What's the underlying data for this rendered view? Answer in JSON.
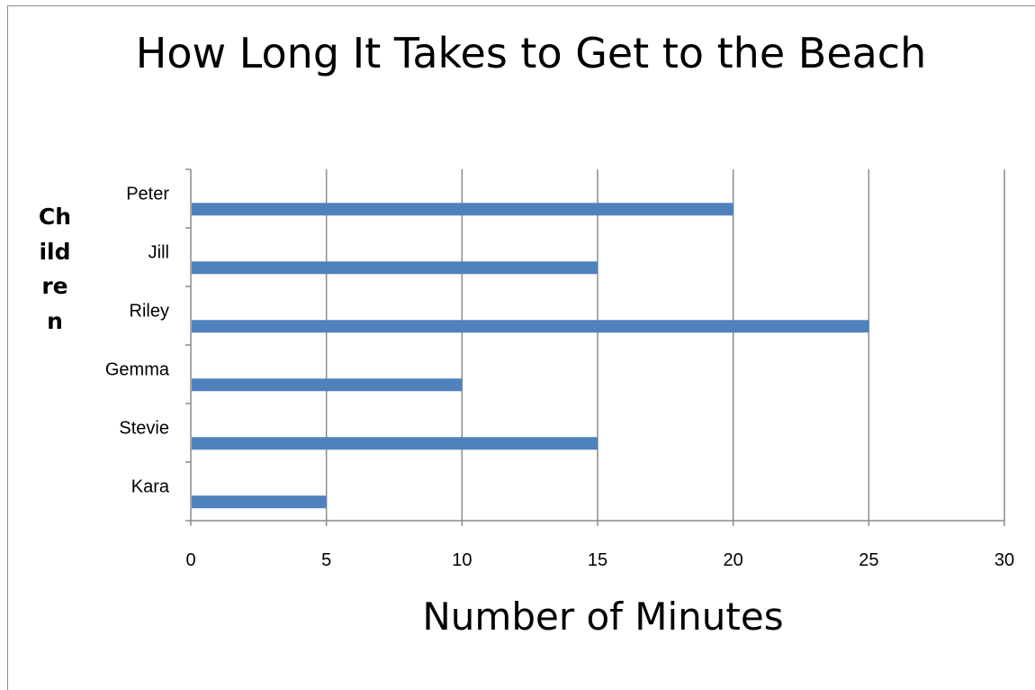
{
  "chart_data": {
    "type": "bar",
    "orientation": "horizontal",
    "title": "How Long It Takes to Get to the Beach",
    "xlabel": "Number of Minutes",
    "ylabel": "Children",
    "categories": [
      "Peter",
      "Jill",
      "Riley",
      "Gemma",
      "Stevie",
      "Kara"
    ],
    "values": [
      20,
      15,
      25,
      10,
      15,
      5
    ],
    "xlim": [
      0,
      30
    ],
    "xticks": [
      0,
      5,
      10,
      15,
      20,
      25,
      30
    ],
    "grid": true,
    "bar_color": "#4f81bd",
    "grid_color": "#8c8c8c"
  }
}
